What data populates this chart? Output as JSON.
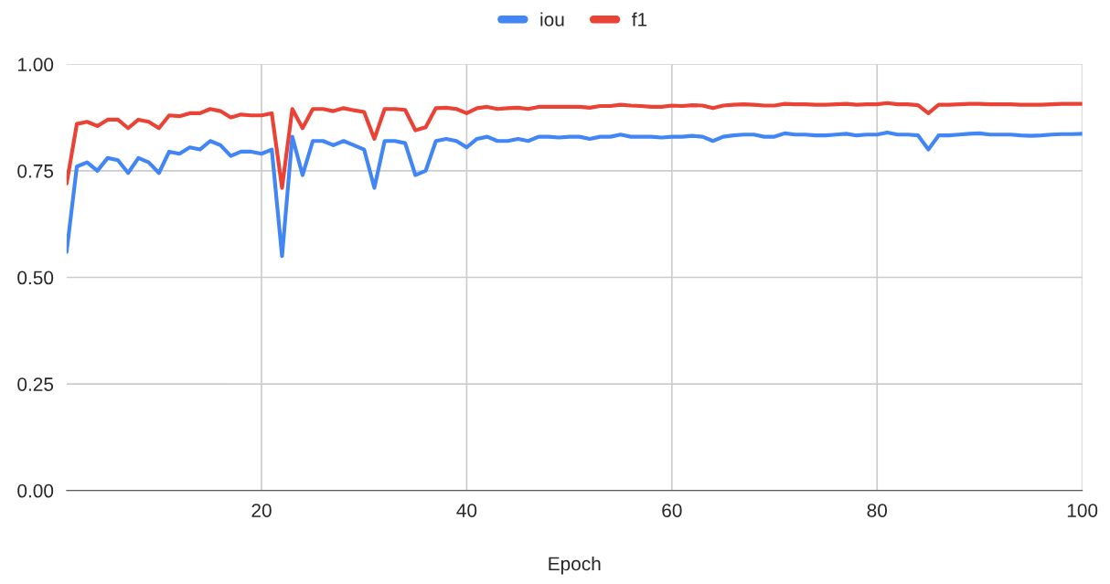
{
  "chart_data": {
    "type": "line",
    "xlabel": "Epoch",
    "x": [
      1,
      2,
      3,
      4,
      5,
      6,
      7,
      8,
      9,
      10,
      11,
      12,
      13,
      14,
      15,
      16,
      17,
      18,
      19,
      20,
      21,
      22,
      23,
      24,
      25,
      26,
      27,
      28,
      29,
      30,
      31,
      32,
      33,
      34,
      35,
      36,
      37,
      38,
      39,
      40,
      41,
      42,
      43,
      44,
      45,
      46,
      47,
      48,
      49,
      50,
      51,
      52,
      53,
      54,
      55,
      56,
      57,
      58,
      59,
      60,
      61,
      62,
      63,
      64,
      65,
      66,
      67,
      68,
      69,
      70,
      71,
      72,
      73,
      74,
      75,
      76,
      77,
      78,
      79,
      80,
      81,
      82,
      83,
      84,
      85,
      86,
      87,
      88,
      89,
      90,
      91,
      92,
      93,
      94,
      95,
      96,
      97,
      98,
      99,
      100
    ],
    "series": [
      {
        "name": "iou",
        "color": "#4285f4",
        "values": [
          0.56,
          0.76,
          0.77,
          0.75,
          0.78,
          0.775,
          0.745,
          0.78,
          0.77,
          0.745,
          0.795,
          0.79,
          0.805,
          0.8,
          0.82,
          0.81,
          0.785,
          0.795,
          0.795,
          0.79,
          0.8,
          0.55,
          0.83,
          0.74,
          0.82,
          0.82,
          0.81,
          0.82,
          0.81,
          0.8,
          0.71,
          0.82,
          0.82,
          0.815,
          0.74,
          0.75,
          0.82,
          0.825,
          0.82,
          0.805,
          0.825,
          0.83,
          0.82,
          0.82,
          0.825,
          0.82,
          0.83,
          0.83,
          0.828,
          0.83,
          0.83,
          0.825,
          0.83,
          0.83,
          0.835,
          0.83,
          0.83,
          0.83,
          0.828,
          0.83,
          0.83,
          0.832,
          0.83,
          0.82,
          0.83,
          0.833,
          0.835,
          0.835,
          0.83,
          0.83,
          0.838,
          0.835,
          0.835,
          0.833,
          0.833,
          0.835,
          0.837,
          0.833,
          0.835,
          0.835,
          0.84,
          0.835,
          0.835,
          0.833,
          0.8,
          0.833,
          0.833,
          0.835,
          0.837,
          0.838,
          0.835,
          0.835,
          0.835,
          0.833,
          0.832,
          0.833,
          0.835,
          0.836,
          0.836,
          0.837
        ]
      },
      {
        "name": "f1",
        "color": "#ea4335",
        "values": [
          0.72,
          0.86,
          0.865,
          0.855,
          0.87,
          0.87,
          0.85,
          0.87,
          0.865,
          0.85,
          0.88,
          0.878,
          0.885,
          0.885,
          0.895,
          0.89,
          0.875,
          0.882,
          0.88,
          0.88,
          0.885,
          0.71,
          0.895,
          0.85,
          0.895,
          0.895,
          0.89,
          0.897,
          0.892,
          0.888,
          0.825,
          0.895,
          0.895,
          0.893,
          0.845,
          0.852,
          0.897,
          0.898,
          0.895,
          0.885,
          0.897,
          0.9,
          0.895,
          0.897,
          0.898,
          0.895,
          0.9,
          0.9,
          0.9,
          0.9,
          0.9,
          0.898,
          0.902,
          0.902,
          0.905,
          0.903,
          0.902,
          0.9,
          0.9,
          0.903,
          0.902,
          0.904,
          0.903,
          0.897,
          0.903,
          0.905,
          0.906,
          0.905,
          0.903,
          0.903,
          0.907,
          0.906,
          0.906,
          0.905,
          0.905,
          0.906,
          0.907,
          0.905,
          0.906,
          0.906,
          0.909,
          0.906,
          0.906,
          0.904,
          0.885,
          0.905,
          0.905,
          0.906,
          0.907,
          0.907,
          0.906,
          0.906,
          0.906,
          0.905,
          0.905,
          0.905,
          0.906,
          0.907,
          0.907,
          0.907
        ]
      }
    ],
    "xlim": [
      1,
      100
    ],
    "xticks": [
      20,
      40,
      60,
      80,
      100
    ],
    "ylim": [
      0,
      1
    ],
    "yticks": [
      {
        "value": 0,
        "label": "0.00"
      },
      {
        "value": 0.25,
        "label": "0.25"
      },
      {
        "value": 0.5,
        "label": "0.50"
      },
      {
        "value": 0.75,
        "label": "0.75"
      },
      {
        "value": 1,
        "label": "1.00"
      }
    ],
    "grid": true,
    "legend": "top",
    "marker": "none",
    "line_style": "solid"
  }
}
